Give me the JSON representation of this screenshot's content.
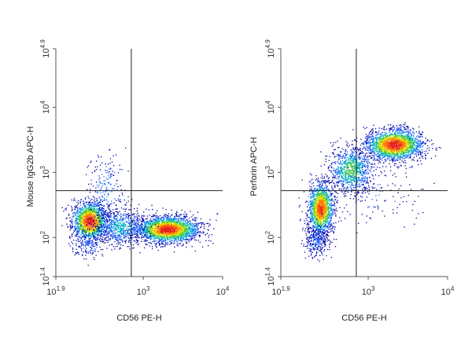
{
  "chart_data": [
    {
      "type": "scatter",
      "subtype": "flow-cytometry-density-dot-plot",
      "title": "",
      "xlabel": "CD56 PE-H",
      "ylabel": "Mouse IgG2b APC-H",
      "x_scale": "log10",
      "y_scale": "log10",
      "xlim": [
        79.4,
        10000
      ],
      "ylim": [
        25.1,
        79433
      ],
      "x_ticks": [
        {
          "value": 79.4,
          "base": "10",
          "exp": "1.9"
        },
        {
          "value": 1000,
          "base": "10",
          "exp": "3"
        },
        {
          "value": 10000,
          "base": "10",
          "exp": "4"
        }
      ],
      "y_ticks": [
        {
          "value": 25.1,
          "base": "10",
          "exp": "1.4"
        },
        {
          "value": 100,
          "base": "10",
          "exp": "2"
        },
        {
          "value": 1000,
          "base": "10",
          "exp": "3"
        },
        {
          "value": 10000,
          "base": "10",
          "exp": "4"
        },
        {
          "value": 79433,
          "base": "10",
          "exp": "4.9"
        }
      ],
      "quadrant_gate": {
        "x": 708,
        "y": 525
      },
      "grid": false,
      "density_colors": [
        "#0000aa",
        "#1e64ff",
        "#00b4c8",
        "#46c83c",
        "#dcdc00",
        "#ff7800",
        "#e61e1e"
      ],
      "populations": [
        {
          "center_x": 210,
          "center_y": 180,
          "spread_x_log": 0.11,
          "spread_y_log": 0.15,
          "events": 1500,
          "peak_level": 0.95
        },
        {
          "center_x": 2000,
          "center_y": 135,
          "spread_x_log": 0.2,
          "spread_y_log": 0.1,
          "events": 2200,
          "peak_level": 0.95
        },
        {
          "center_x": 520,
          "center_y": 145,
          "spread_x_log": 0.17,
          "spread_y_log": 0.14,
          "events": 700,
          "peak_level": 0.35
        },
        {
          "center_x": 330,
          "center_y": 560,
          "spread_x_log": 0.12,
          "spread_y_log": 0.3,
          "events": 220,
          "peak_level": 0.25
        },
        {
          "center_x": 200,
          "center_y": 78,
          "spread_x_log": 0.1,
          "spread_y_log": 0.12,
          "events": 160,
          "peak_level": 0.2
        }
      ]
    },
    {
      "type": "scatter",
      "subtype": "flow-cytometry-density-dot-plot",
      "title": "",
      "xlabel": "CD56 PE-H",
      "ylabel": "Perforin APC-H",
      "x_scale": "log10",
      "y_scale": "log10",
      "xlim": [
        79.4,
        10000
      ],
      "ylim": [
        25.1,
        79433
      ],
      "x_ticks": [
        {
          "value": 79.4,
          "base": "10",
          "exp": "1.9"
        },
        {
          "value": 1000,
          "base": "10",
          "exp": "3"
        },
        {
          "value": 10000,
          "base": "10",
          "exp": "4"
        }
      ],
      "y_ticks": [
        {
          "value": 25.1,
          "base": "10",
          "exp": "1.4"
        },
        {
          "value": 100,
          "base": "10",
          "exp": "2"
        },
        {
          "value": 1000,
          "base": "10",
          "exp": "3"
        },
        {
          "value": 10000,
          "base": "10",
          "exp": "4"
        },
        {
          "value": 79433,
          "base": "10",
          "exp": "4.9"
        }
      ],
      "quadrant_gate": {
        "x": 708,
        "y": 525
      },
      "grid": false,
      "density_colors": [
        "#0000aa",
        "#1e64ff",
        "#00b4c8",
        "#46c83c",
        "#dcdc00",
        "#ff7800",
        "#e61e1e"
      ],
      "populations": [
        {
          "center_x": 2100,
          "center_y": 2700,
          "spread_x_log": 0.18,
          "spread_y_log": 0.12,
          "events": 2100,
          "peak_level": 0.95
        },
        {
          "center_x": 250,
          "center_y": 280,
          "spread_x_log": 0.08,
          "spread_y_log": 0.2,
          "events": 1500,
          "peak_level": 0.9
        },
        {
          "center_x": 600,
          "center_y": 1100,
          "spread_x_log": 0.14,
          "spread_y_log": 0.18,
          "events": 900,
          "peak_level": 0.5
        },
        {
          "center_x": 220,
          "center_y": 90,
          "spread_x_log": 0.08,
          "spread_y_log": 0.12,
          "events": 280,
          "peak_level": 0.2
        },
        {
          "center_x": 1400,
          "center_y": 500,
          "spread_x_log": 0.3,
          "spread_y_log": 0.3,
          "events": 120,
          "peak_level": 0.15
        }
      ]
    }
  ]
}
